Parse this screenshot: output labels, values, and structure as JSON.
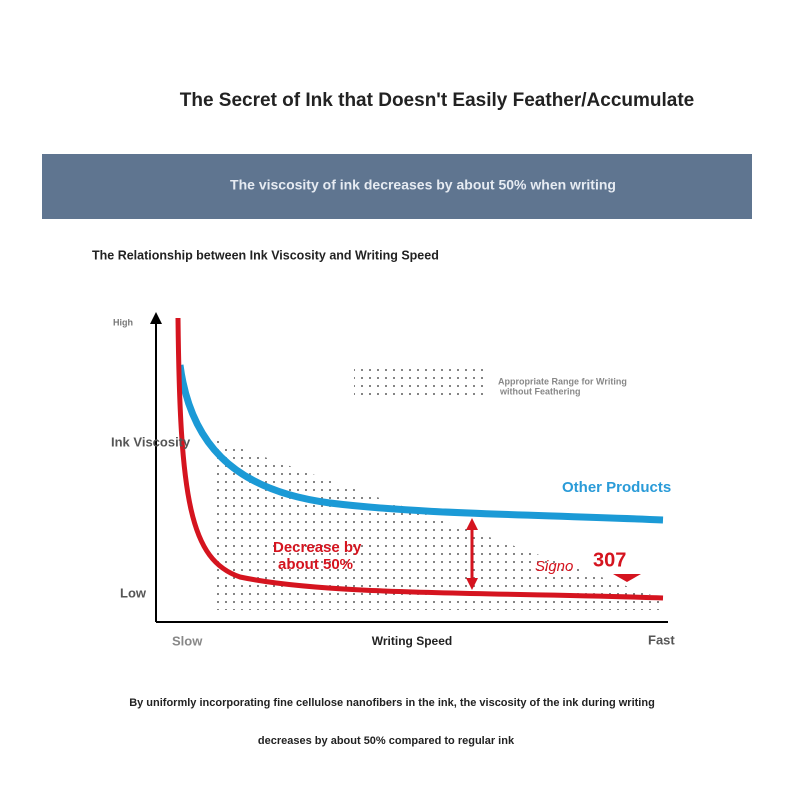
{
  "header": {
    "title": "The Secret of Ink that Doesn't Easily Feather/Accumulate"
  },
  "banner": {
    "text": "The viscosity of ink decreases by about 50% when writing"
  },
  "diagram": {
    "heading": "The Relationship between Ink Viscosity and Writing Speed",
    "y_axis": {
      "high": "High",
      "label": "Ink Viscosity",
      "low": "Low"
    },
    "x_axis": {
      "slow": "Slow",
      "label": "Writing Speed",
      "fast": "Fast"
    },
    "legend": {
      "lines": [
        "Appropriate Range for Writing",
        "without Feathering"
      ]
    },
    "other_products": "Other Products",
    "decrease": {
      "lines": [
        "Decrease by",
        "about 50%"
      ]
    },
    "logo": {
      "brand": "Signo",
      "model": "307"
    }
  },
  "footer": {
    "lines": [
      "By uniformly incorporating fine cellulose nanofibers in the ink, the viscosity of the ink during writing",
      "decreases by about 50% compared to regular ink"
    ]
  }
}
